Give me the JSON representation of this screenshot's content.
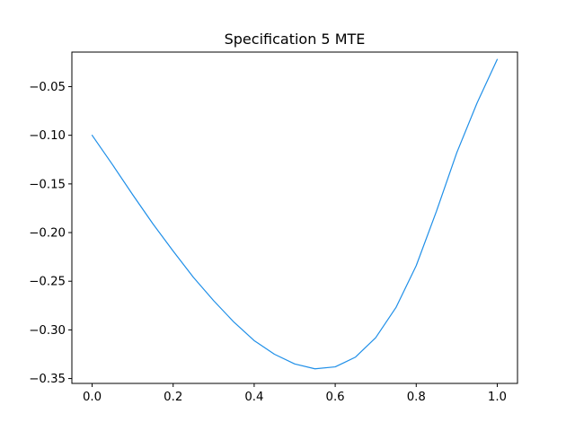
{
  "chart_data": {
    "type": "line",
    "title": "Specification 5 MTE",
    "xlabel": "",
    "ylabel": "",
    "xlim": [
      -0.05,
      1.05
    ],
    "ylim": [
      -0.355,
      -0.0145
    ],
    "grid": false,
    "x_ticks": [
      {
        "value": 0.0,
        "label": "0.0"
      },
      {
        "value": 0.2,
        "label": "0.2"
      },
      {
        "value": 0.4,
        "label": "0.4"
      },
      {
        "value": 0.6,
        "label": "0.6"
      },
      {
        "value": 0.8,
        "label": "0.8"
      },
      {
        "value": 1.0,
        "label": "1.0"
      }
    ],
    "y_ticks": [
      {
        "value": -0.05,
        "label": "−0.05"
      },
      {
        "value": -0.1,
        "label": "−0.10"
      },
      {
        "value": -0.15,
        "label": "−0.15"
      },
      {
        "value": -0.2,
        "label": "−0.20"
      },
      {
        "value": -0.25,
        "label": "−0.25"
      },
      {
        "value": -0.3,
        "label": "−0.30"
      },
      {
        "value": -0.35,
        "label": "−0.35"
      }
    ],
    "series": [
      {
        "color": "#1f8fe8",
        "x": [
          0.0,
          0.05,
          0.1,
          0.15,
          0.2,
          0.25,
          0.3,
          0.35,
          0.4,
          0.45,
          0.5,
          0.55,
          0.6,
          0.65,
          0.7,
          0.75,
          0.8,
          0.85,
          0.9,
          0.95,
          1.0
        ],
        "y": [
          -0.1,
          -0.13,
          -0.161,
          -0.191,
          -0.219,
          -0.246,
          -0.27,
          -0.292,
          -0.311,
          -0.325,
          -0.335,
          -0.34,
          -0.338,
          -0.328,
          -0.308,
          -0.277,
          -0.234,
          -0.178,
          -0.118,
          -0.067,
          -0.022
        ]
      }
    ]
  }
}
